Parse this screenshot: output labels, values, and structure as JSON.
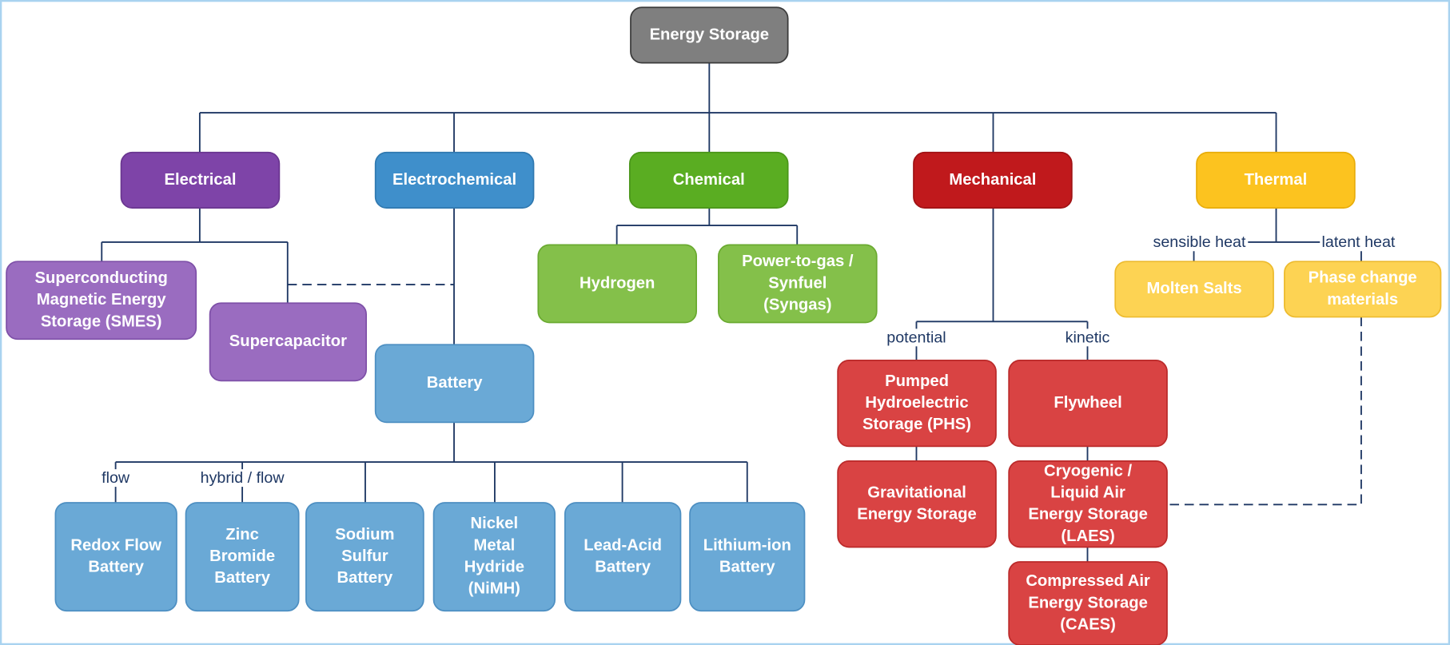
{
  "nodes": [
    {
      "lines": [
        "Energy Storage"
      ]
    },
    {
      "lines": [
        "Electrical"
      ]
    },
    {
      "lines": [
        "Electrochemical"
      ]
    },
    {
      "lines": [
        "Chemical"
      ]
    },
    {
      "lines": [
        "Mechanical"
      ]
    },
    {
      "lines": [
        "Thermal"
      ]
    },
    {
      "lines": [
        "Superconducting",
        "Magnetic Energy",
        "Storage (SMES)"
      ]
    },
    {
      "lines": [
        "Supercapacitor"
      ]
    },
    {
      "lines": [
        "Battery"
      ]
    },
    {
      "lines": [
        "Hydrogen"
      ]
    },
    {
      "lines": [
        "Power-to-gas /",
        "Synfuel",
        "(Syngas)"
      ]
    },
    {
      "lines": [
        "Molten Salts"
      ]
    },
    {
      "lines": [
        "Phase change",
        "materials"
      ]
    },
    {
      "lines": [
        "Pumped",
        "Hydroelectric",
        "Storage (PHS)"
      ]
    },
    {
      "lines": [
        "Flywheel"
      ]
    },
    {
      "lines": [
        "Gravitational",
        "Energy Storage"
      ]
    },
    {
      "lines": [
        "Cryogenic /",
        "Liquid Air",
        "Energy Storage",
        "(LAES)"
      ]
    },
    {
      "lines": [
        "Compressed Air",
        "Energy Storage",
        "(CAES)"
      ]
    },
    {
      "lines": [
        "Redox Flow",
        "Battery"
      ]
    },
    {
      "lines": [
        "Zinc",
        "Bromide",
        "Battery"
      ]
    },
    {
      "lines": [
        "Sodium",
        "Sulfur",
        "Battery"
      ]
    },
    {
      "lines": [
        "Nickel",
        "Metal",
        "Hydride",
        "(NiMH)"
      ]
    },
    {
      "lines": [
        "Lead-Acid",
        "Battery"
      ]
    },
    {
      "lines": [
        "Lithium-ion",
        "Battery"
      ]
    }
  ],
  "edge_labels": [
    "sensible heat",
    "latent heat",
    "potential",
    "kinetic",
    "flow",
    "hybrid / flow"
  ]
}
